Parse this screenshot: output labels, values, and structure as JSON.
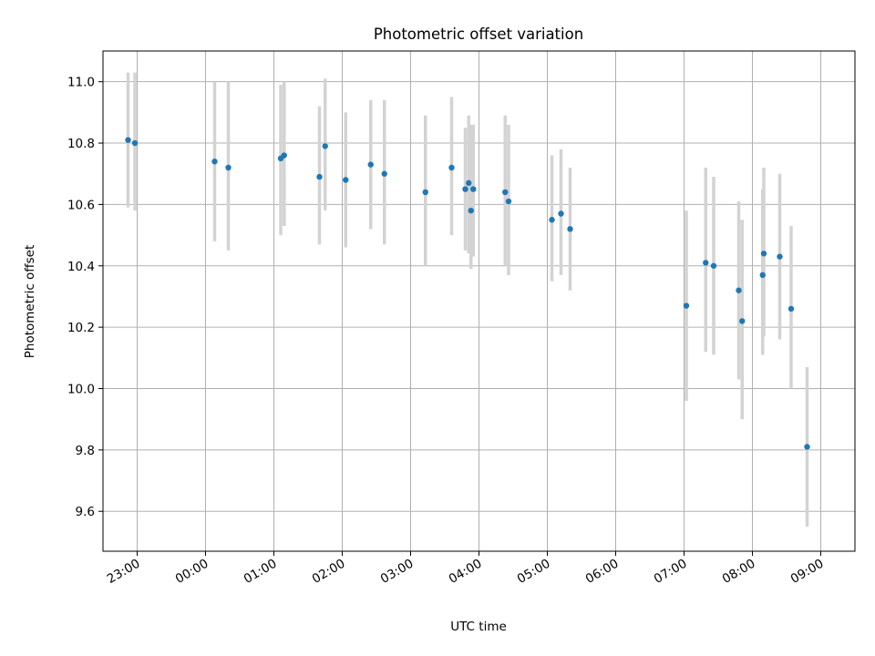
{
  "chart_data": {
    "type": "scatter",
    "title": "Photometric offset variation",
    "xlabel": "UTC time",
    "ylabel": "Photometric offset",
    "xlim": [
      "22:30",
      "09:30"
    ],
    "ylim": [
      9.47,
      11.1
    ],
    "grid": true,
    "x_ticks": [
      "23:00",
      "00:00",
      "01:00",
      "02:00",
      "03:00",
      "04:00",
      "05:00",
      "06:00",
      "07:00",
      "08:00",
      "09:00"
    ],
    "y_ticks": [
      "9.6",
      "9.8",
      "10.0",
      "10.2",
      "10.4",
      "10.6",
      "10.8",
      "11.0"
    ],
    "colors": {
      "point": "#1f77b4",
      "errorbar": "#d3d3d3",
      "grid": "#b0b0b0"
    },
    "points": [
      {
        "x": "22:52",
        "y": 10.81,
        "ylow": 10.59,
        "yhigh": 11.03
      },
      {
        "x": "22:58",
        "y": 10.8,
        "ylow": 10.58,
        "yhigh": 11.03
      },
      {
        "x": "00:08",
        "y": 10.74,
        "ylow": 10.48,
        "yhigh": 11.0
      },
      {
        "x": "00:20",
        "y": 10.72,
        "ylow": 10.45,
        "yhigh": 11.0
      },
      {
        "x": "01:06",
        "y": 10.75,
        "ylow": 10.5,
        "yhigh": 10.99
      },
      {
        "x": "01:09",
        "y": 10.76,
        "ylow": 10.53,
        "yhigh": 11.0
      },
      {
        "x": "01:40",
        "y": 10.69,
        "ylow": 10.47,
        "yhigh": 10.92
      },
      {
        "x": "01:45",
        "y": 10.79,
        "ylow": 10.58,
        "yhigh": 11.01
      },
      {
        "x": "02:03",
        "y": 10.68,
        "ylow": 10.46,
        "yhigh": 10.9
      },
      {
        "x": "02:25",
        "y": 10.73,
        "ylow": 10.52,
        "yhigh": 10.94
      },
      {
        "x": "02:37",
        "y": 10.7,
        "ylow": 10.47,
        "yhigh": 10.94
      },
      {
        "x": "03:13",
        "y": 10.64,
        "ylow": 10.4,
        "yhigh": 10.89
      },
      {
        "x": "03:36",
        "y": 10.72,
        "ylow": 10.5,
        "yhigh": 10.95
      },
      {
        "x": "03:48",
        "y": 10.65,
        "ylow": 10.45,
        "yhigh": 10.85
      },
      {
        "x": "03:51",
        "y": 10.67,
        "ylow": 10.44,
        "yhigh": 10.89
      },
      {
        "x": "03:53",
        "y": 10.58,
        "ylow": 10.39,
        "yhigh": 10.86
      },
      {
        "x": "03:55",
        "y": 10.65,
        "ylow": 10.43,
        "yhigh": 10.86
      },
      {
        "x": "04:23",
        "y": 10.64,
        "ylow": 10.4,
        "yhigh": 10.89
      },
      {
        "x": "04:26",
        "y": 10.61,
        "ylow": 10.37,
        "yhigh": 10.86
      },
      {
        "x": "05:04",
        "y": 10.55,
        "ylow": 10.35,
        "yhigh": 10.76
      },
      {
        "x": "05:12",
        "y": 10.57,
        "ylow": 10.37,
        "yhigh": 10.78
      },
      {
        "x": "05:20",
        "y": 10.52,
        "ylow": 10.32,
        "yhigh": 10.72
      },
      {
        "x": "07:02",
        "y": 10.27,
        "ylow": 9.96,
        "yhigh": 10.58
      },
      {
        "x": "07:19",
        "y": 10.41,
        "ylow": 10.12,
        "yhigh": 10.72
      },
      {
        "x": "07:26",
        "y": 10.4,
        "ylow": 10.11,
        "yhigh": 10.69
      },
      {
        "x": "07:48",
        "y": 10.32,
        "ylow": 10.03,
        "yhigh": 10.61
      },
      {
        "x": "07:51",
        "y": 10.22,
        "ylow": 9.9,
        "yhigh": 10.55
      },
      {
        "x": "08:09",
        "y": 10.37,
        "ylow": 10.11,
        "yhigh": 10.65
      },
      {
        "x": "08:10",
        "y": 10.44,
        "ylow": 10.17,
        "yhigh": 10.72
      },
      {
        "x": "08:24",
        "y": 10.43,
        "ylow": 10.16,
        "yhigh": 10.7
      },
      {
        "x": "08:34",
        "y": 10.26,
        "ylow": 10.0,
        "yhigh": 10.53
      },
      {
        "x": "08:48",
        "y": 9.81,
        "ylow": 9.55,
        "yhigh": 10.07
      }
    ]
  }
}
